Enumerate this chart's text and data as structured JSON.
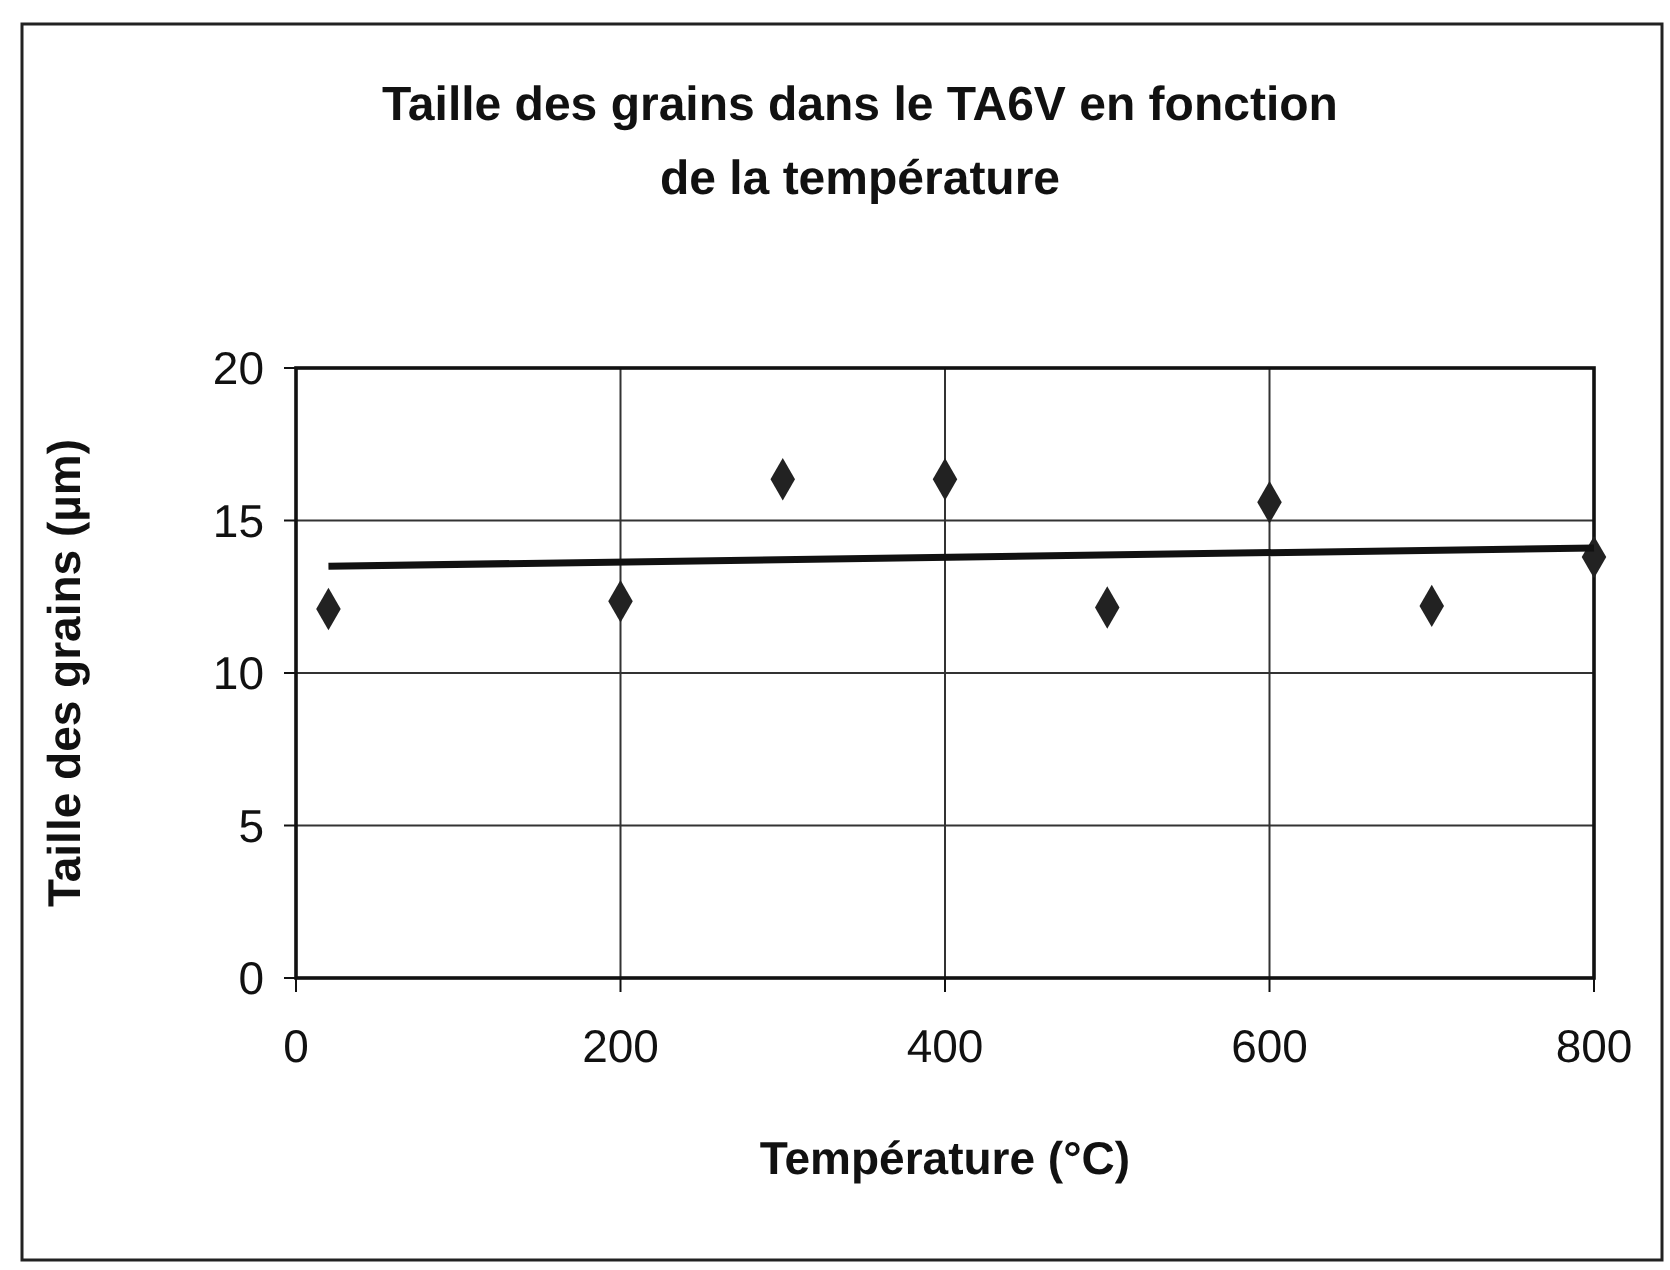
{
  "chart_data": {
    "type": "scatter",
    "title": "Taille des grains dans le TA6V en fonction de la température",
    "xlabel": "Température (°C)",
    "ylabel": "Taille des grains (µm)",
    "series": [
      {
        "color": "#222222",
        "x": [
          20,
          200,
          300,
          400,
          500,
          600,
          700,
          800
        ],
        "values": [
          12.1,
          12.35,
          16.35,
          16.35,
          12.15,
          15.6,
          12.2,
          13.8
        ],
        "marker": "diamond"
      },
      {
        "type": "line",
        "color": "#111111",
        "x": [
          20,
          800
        ],
        "values": [
          13.5,
          14.1
        ],
        "marker": "none",
        "line_style": "solid"
      }
    ],
    "xlim": [
      0,
      800
    ],
    "xticks": [
      0,
      200,
      400,
      600,
      800
    ],
    "ylim": [
      0,
      20
    ],
    "yticks": [
      0,
      5,
      10,
      15,
      20
    ],
    "grid": true
  }
}
